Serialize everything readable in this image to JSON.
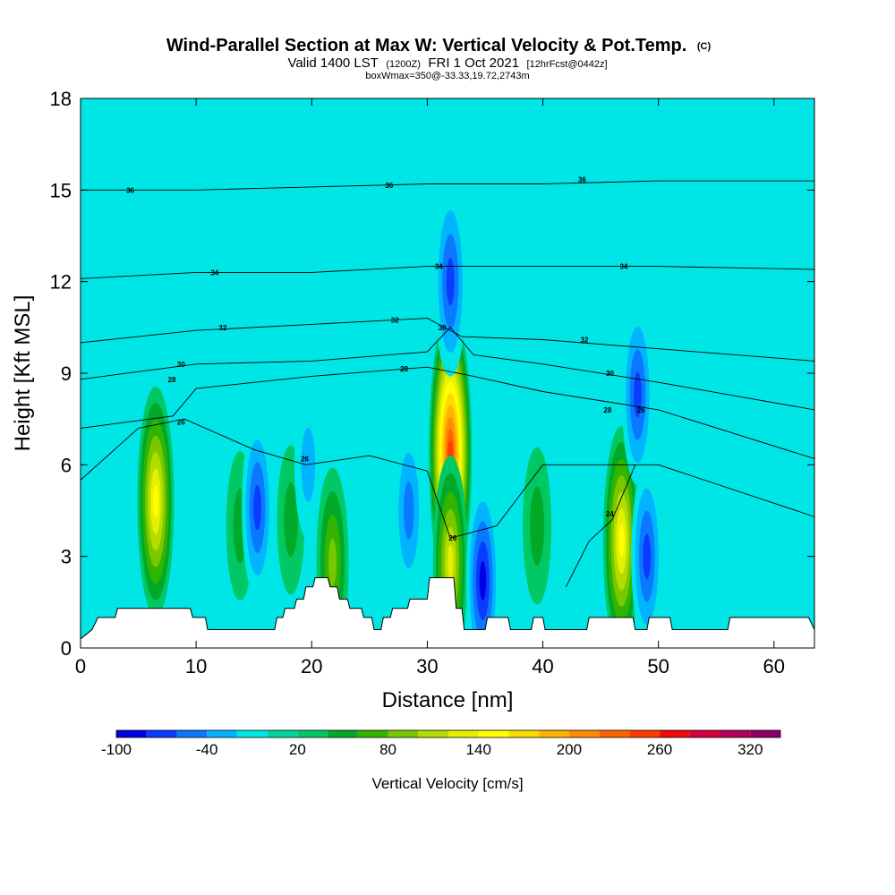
{
  "header": {
    "title": "Wind-Parallel Section at Max W: Vertical Velocity & Pot.Temp.",
    "title_superscript": "(C)",
    "subtitle_valid": "Valid 1400 LST",
    "subtitle_utc": "(1200Z)",
    "subtitle_date": "FRI 1 Oct 2021",
    "subtitle_fcst": "[12hrFcst@0442z]",
    "subtitle_box": "boxWmax=350@-33.33,19.72,2743m"
  },
  "chart_data": {
    "type": "heatmap",
    "xlabel": "Distance [nm]",
    "ylabel": "Height [Kft MSL]",
    "xlim": [
      0,
      63.5
    ],
    "ylim": [
      0,
      18
    ],
    "x_ticks": [
      0,
      10,
      20,
      30,
      40,
      50,
      60
    ],
    "x_tick_labels": [
      "0",
      "10",
      "20",
      "30",
      "40",
      "50",
      "60"
    ],
    "y_ticks": [
      0,
      3,
      6,
      9,
      12,
      15,
      18
    ],
    "y_tick_labels": [
      "0",
      "3",
      "6",
      "9",
      "12",
      "15",
      "18"
    ],
    "colorbar": {
      "title": "Vertical Velocity [cm/s]",
      "min": -100,
      "max": 340,
      "step": 20,
      "tick_values": [
        -100,
        -40,
        20,
        80,
        140,
        200,
        260,
        320
      ],
      "tick_labels": [
        "-100",
        "-40",
        "20",
        "80",
        "140",
        "200",
        "260",
        "320"
      ],
      "colors": [
        "#0000e6",
        "#0a3cff",
        "#0a78ff",
        "#00b4ff",
        "#00e6e6",
        "#00d4a0",
        "#00c864",
        "#00aa28",
        "#32b400",
        "#78c800",
        "#b4dc00",
        "#e6f000",
        "#ffff00",
        "#ffdc00",
        "#ffb400",
        "#ff8c00",
        "#ff6400",
        "#ff3c00",
        "#f00a0a",
        "#d2003c",
        "#b4005a",
        "#8c0064"
      ]
    },
    "background_value": 10,
    "w_features": [
      {
        "x": 6.5,
        "y": 4.8,
        "value": 140
      },
      {
        "x": 13.8,
        "y": 4.0,
        "value": 40
      },
      {
        "x": 15.3,
        "y": 4.6,
        "value": -60
      },
      {
        "x": 18.2,
        "y": 4.2,
        "value": 40
      },
      {
        "x": 19.7,
        "y": 6.0,
        "value": -20
      },
      {
        "x": 21.8,
        "y": 2.8,
        "value": 90
      },
      {
        "x": 28.4,
        "y": 4.5,
        "value": -50
      },
      {
        "x": 32.0,
        "y": 6.4,
        "value": 240
      },
      {
        "x": 32.0,
        "y": 2.8,
        "value": 120
      },
      {
        "x": 32.0,
        "y": 12.0,
        "value": -70
      },
      {
        "x": 34.8,
        "y": 2.2,
        "value": -80
      },
      {
        "x": 39.5,
        "y": 4.0,
        "value": 50
      },
      {
        "x": 46.8,
        "y": 3.5,
        "value": 140
      },
      {
        "x": 49.0,
        "y": 3.0,
        "value": -60
      },
      {
        "x": 48.2,
        "y": 8.3,
        "value": -60
      }
    ],
    "theta_contours": [
      {
        "label": "36",
        "points": [
          [
            0,
            15.0
          ],
          [
            10,
            15.0
          ],
          [
            20,
            15.1
          ],
          [
            30,
            15.2
          ],
          [
            40,
            15.2
          ],
          [
            50,
            15.3
          ],
          [
            63.5,
            15.3
          ]
        ],
        "labels_at": [
          [
            4.3,
            15.0
          ],
          [
            26.7,
            15.15
          ],
          [
            43.4,
            15.35
          ]
        ]
      },
      {
        "label": "34",
        "points": [
          [
            0,
            12.1
          ],
          [
            10,
            12.3
          ],
          [
            20,
            12.3
          ],
          [
            30,
            12.5
          ],
          [
            40,
            12.5
          ],
          [
            50,
            12.5
          ],
          [
            63.5,
            12.4
          ]
        ],
        "labels_at": [
          [
            11.6,
            12.3
          ],
          [
            31.0,
            12.5
          ],
          [
            47.0,
            12.5
          ]
        ]
      },
      {
        "label": "32",
        "points": [
          [
            0,
            10.0
          ],
          [
            10,
            10.4
          ],
          [
            20,
            10.6
          ],
          [
            30,
            10.8
          ],
          [
            33,
            10.2
          ],
          [
            40,
            10.1
          ],
          [
            50,
            9.8
          ],
          [
            63.5,
            9.4
          ]
        ],
        "labels_at": [
          [
            12.3,
            10.5
          ],
          [
            27.2,
            10.75
          ],
          [
            43.6,
            10.1
          ]
        ]
      },
      {
        "label": "30",
        "points": [
          [
            0,
            8.8
          ],
          [
            10,
            9.3
          ],
          [
            20,
            9.4
          ],
          [
            30,
            9.7
          ],
          [
            32,
            10.5
          ],
          [
            34,
            9.6
          ],
          [
            40,
            9.3
          ],
          [
            50,
            8.7
          ],
          [
            63.5,
            7.8
          ]
        ],
        "labels_at": [
          [
            8.7,
            9.3
          ],
          [
            31.3,
            10.5
          ],
          [
            45.8,
            9.0
          ]
        ]
      },
      {
        "label": "28",
        "points": [
          [
            0,
            7.2
          ],
          [
            8,
            7.6
          ],
          [
            10,
            8.5
          ],
          [
            20,
            8.9
          ],
          [
            30,
            9.2
          ],
          [
            34,
            8.9
          ],
          [
            40,
            8.4
          ],
          [
            50,
            7.8
          ],
          [
            63.5,
            6.2
          ]
        ],
        "labels_at": [
          [
            7.9,
            8.8
          ],
          [
            28.0,
            9.15
          ],
          [
            45.6,
            7.8
          ]
        ]
      },
      {
        "label": "26",
        "points": [
          [
            0,
            5.5
          ],
          [
            5,
            7.2
          ],
          [
            9,
            7.5
          ],
          [
            15,
            6.5
          ],
          [
            19.5,
            6.0
          ],
          [
            25,
            6.3
          ],
          [
            30,
            5.8
          ],
          [
            32,
            3.6
          ],
          [
            36,
            4.0
          ],
          [
            40,
            6.0
          ],
          [
            47,
            6.0
          ],
          [
            50,
            6.0
          ],
          [
            63.5,
            4.3
          ]
        ],
        "labels_at": [
          [
            8.7,
            7.4
          ],
          [
            19.4,
            6.2
          ],
          [
            32.2,
            3.6
          ],
          [
            48.5,
            7.8
          ]
        ]
      },
      {
        "label": "24",
        "points": [
          [
            42,
            2.0
          ],
          [
            44,
            3.5
          ],
          [
            46,
            4.2
          ],
          [
            48,
            6.0
          ]
        ],
        "labels_at": [
          [
            45.8,
            4.4
          ]
        ]
      }
    ],
    "terrain": [
      [
        0,
        0.3
      ],
      [
        1,
        0.6
      ],
      [
        1.5,
        1.0
      ],
      [
        3,
        1.0
      ],
      [
        3.2,
        1.3
      ],
      [
        9.5,
        1.3
      ],
      [
        9.7,
        1.0
      ],
      [
        10.8,
        1.0
      ],
      [
        11,
        0.6
      ],
      [
        16.8,
        0.6
      ],
      [
        17,
        1.0
      ],
      [
        17.5,
        1.0
      ],
      [
        17.7,
        1.3
      ],
      [
        18.5,
        1.3
      ],
      [
        18.7,
        1.6
      ],
      [
        19.3,
        1.6
      ],
      [
        19.5,
        2.0
      ],
      [
        20.1,
        2.0
      ],
      [
        20.3,
        2.3
      ],
      [
        21.4,
        2.3
      ],
      [
        21.6,
        2.0
      ],
      [
        22.2,
        2.0
      ],
      [
        22.4,
        1.6
      ],
      [
        23.1,
        1.6
      ],
      [
        23.3,
        1.3
      ],
      [
        24.3,
        1.3
      ],
      [
        24.5,
        1.0
      ],
      [
        25.2,
        1.0
      ],
      [
        25.4,
        0.6
      ],
      [
        26.0,
        0.6
      ],
      [
        26.2,
        1.0
      ],
      [
        26.8,
        1.0
      ],
      [
        27,
        1.3
      ],
      [
        28.3,
        1.3
      ],
      [
        28.5,
        1.6
      ],
      [
        30.0,
        1.6
      ],
      [
        30.2,
        2.3
      ],
      [
        32.3,
        2.3
      ],
      [
        32.5,
        1.3
      ],
      [
        33.0,
        1.3
      ],
      [
        33.2,
        0.6
      ],
      [
        35.0,
        0.6
      ],
      [
        35.2,
        1.0
      ],
      [
        37.0,
        1.0
      ],
      [
        37.2,
        0.6
      ],
      [
        39.0,
        0.6
      ],
      [
        39.2,
        1.0
      ],
      [
        40.0,
        1.0
      ],
      [
        40.2,
        0.6
      ],
      [
        43.8,
        0.6
      ],
      [
        44.0,
        1.0
      ],
      [
        47.8,
        1.0
      ],
      [
        48.0,
        0.6
      ],
      [
        49.0,
        0.6
      ],
      [
        49.2,
        1.0
      ],
      [
        51.0,
        1.0
      ],
      [
        51.2,
        0.6
      ],
      [
        56.0,
        0.6
      ],
      [
        56.2,
        1.0
      ],
      [
        63.0,
        1.0
      ],
      [
        63.5,
        0.6
      ]
    ]
  }
}
